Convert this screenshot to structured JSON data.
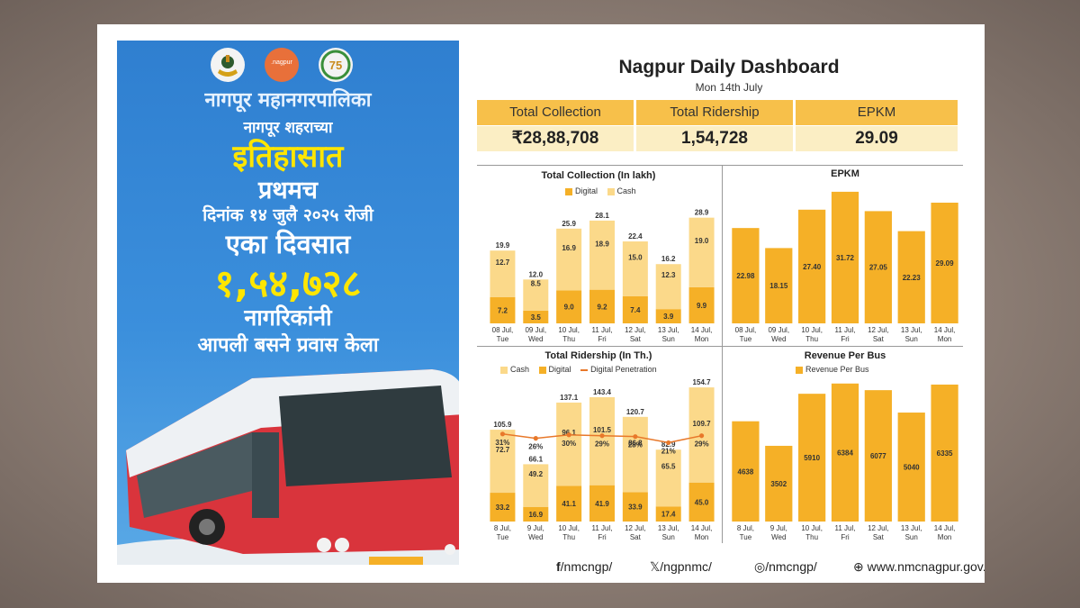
{
  "poster": {
    "org": "नागपूर महानगरपालिका",
    "city_line": "नागपूर शहराच्या",
    "history": "इतिहासात",
    "first": "प्रथमच",
    "date_line": "दिनांक १४ जुलै २०२५ रोजी",
    "one_day": "एका दिवसात",
    "count": "१,५४,७२८",
    "citizens": "नागरिकांनी",
    "travel": "आपली बसने प्रवास केला",
    "logo_mid_text": ".nagpur",
    "colors": {
      "bg": "#3b8fdc",
      "accent": "#ffe600",
      "bus": "#d9343c"
    }
  },
  "dashboard": {
    "title": "Nagpur Daily Dashboard",
    "date": "Mon 14th July",
    "kpis": [
      {
        "label": "Total Collection",
        "value": "₹28,88,708"
      },
      {
        "label": "Total Ridership",
        "value": "1,54,728"
      },
      {
        "label": "EPKM",
        "value": "29.09"
      }
    ]
  },
  "footer": {
    "facebook": "/nmcngp/",
    "x": "/ngpnmc/",
    "instagram": "/nmcngp/",
    "web": "www.nmcnagpur.gov.in/"
  },
  "chart_data": [
    {
      "id": "collection",
      "type": "bar",
      "title": "Total Collection (In lakh)",
      "categories": [
        "08 Jul, Tue",
        "09 Jul, Wed",
        "10 Jul, Thu",
        "11 Jul, Fri",
        "12 Jul, Sat",
        "13 Jul, Sun",
        "14 Jul, Mon"
      ],
      "series": [
        {
          "name": "Digital",
          "values": [
            7.2,
            3.5,
            9.0,
            9.2,
            7.4,
            3.9,
            9.9
          ],
          "color": "#f5b027"
        },
        {
          "name": "Cash",
          "values": [
            12.7,
            8.5,
            16.9,
            18.9,
            15.0,
            12.3,
            19.0
          ],
          "color": "#fbd98a"
        }
      ],
      "totals": [
        19.9,
        12.0,
        25.9,
        28.1,
        22.4,
        16.2,
        28.9
      ],
      "stacked": true,
      "ylim": [
        0,
        33
      ]
    },
    {
      "id": "epkm",
      "type": "bar",
      "title": "EPKM",
      "categories": [
        "08 Jul, Tue",
        "09 Jul, Wed",
        "10 Jul, Thu",
        "11 Jul, Fri",
        "12 Jul, Sat",
        "13 Jul, Sun",
        "14 Jul, Mon"
      ],
      "values": [
        22.98,
        18.15,
        27.4,
        31.72,
        27.05,
        22.23,
        29.09
      ],
      "color": "#f5b027",
      "ylim": [
        0,
        33
      ]
    },
    {
      "id": "ridership",
      "type": "bar",
      "title": "Total Ridership (In Th.)",
      "categories": [
        "8 Jul, Tue",
        "9 Jul, Wed",
        "10 Jul, Thu",
        "11 Jul, Fri",
        "12 Jul, Sat",
        "13 Jul, Sun",
        "14 Jul, Mon"
      ],
      "series": [
        {
          "name": "Digital",
          "values": [
            33.2,
            16.9,
            41.1,
            41.9,
            33.9,
            17.4,
            45.0
          ],
          "color": "#f5b027"
        },
        {
          "name": "Cash",
          "values": [
            72.7,
            49.2,
            96.1,
            101.5,
            86.8,
            65.5,
            109.7
          ],
          "color": "#fbd98a"
        }
      ],
      "totals": [
        105.9,
        66.1,
        137.1,
        143.4,
        120.7,
        82.9,
        154.7
      ],
      "line": {
        "name": "Digital Penetration",
        "labels": [
          "31%",
          "26%",
          "30%",
          "29%",
          "28%",
          "21%",
          "29%"
        ],
        "values": [
          31,
          26,
          30,
          29,
          28,
          21,
          29
        ],
        "color": "#e8782a"
      },
      "legend": [
        "Cash",
        "Digital",
        "Digital Penetration"
      ],
      "stacked": true,
      "ylim": [
        0,
        160
      ]
    },
    {
      "id": "rpb",
      "type": "bar",
      "title": "Revenue Per Bus",
      "categories": [
        "8 Jul, Tue",
        "9 Jul, Wed",
        "10 Jul, Thu",
        "11 Jul, Fri",
        "12 Jul, Sat",
        "13 Jul, Sun",
        "14 Jul, Mon"
      ],
      "values": [
        4638,
        3502,
        5910,
        6384,
        6077,
        5040,
        6335
      ],
      "series_name": "Revenue Per Bus",
      "color": "#f5b027",
      "ylim": [
        0,
        6500
      ]
    }
  ]
}
